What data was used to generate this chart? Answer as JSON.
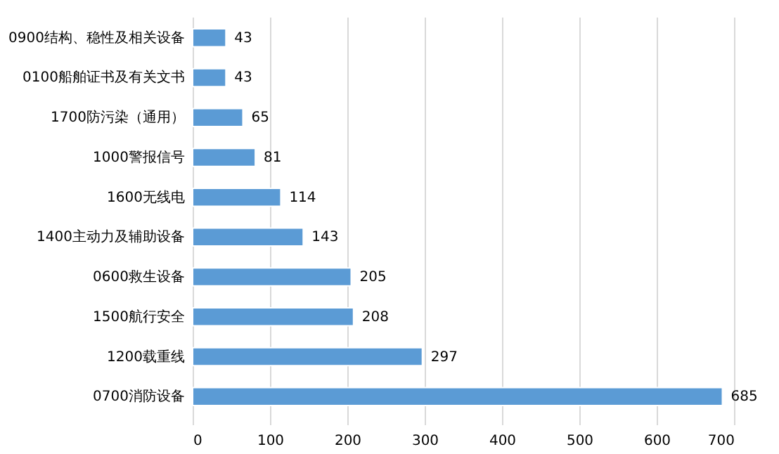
{
  "chart_data": {
    "type": "bar",
    "orientation": "horizontal",
    "categories": [
      "0900结构、稳性及相关设备",
      "0100船舶证书及有关文书",
      "1700防污染（通用）",
      "1000警报信号",
      "1600无线电",
      "1400主动力及辅助设备",
      "0600救生设备",
      "1500航行安全",
      "1200载重线",
      "0700消防设备"
    ],
    "values": [
      43,
      43,
      65,
      81,
      114,
      143,
      205,
      208,
      297,
      685
    ],
    "color": "#5b9bd5",
    "xlim": [
      0,
      700
    ],
    "xticks": [
      0,
      100,
      200,
      300,
      400,
      500,
      600,
      700
    ],
    "grid": "x",
    "data_labels": true
  }
}
